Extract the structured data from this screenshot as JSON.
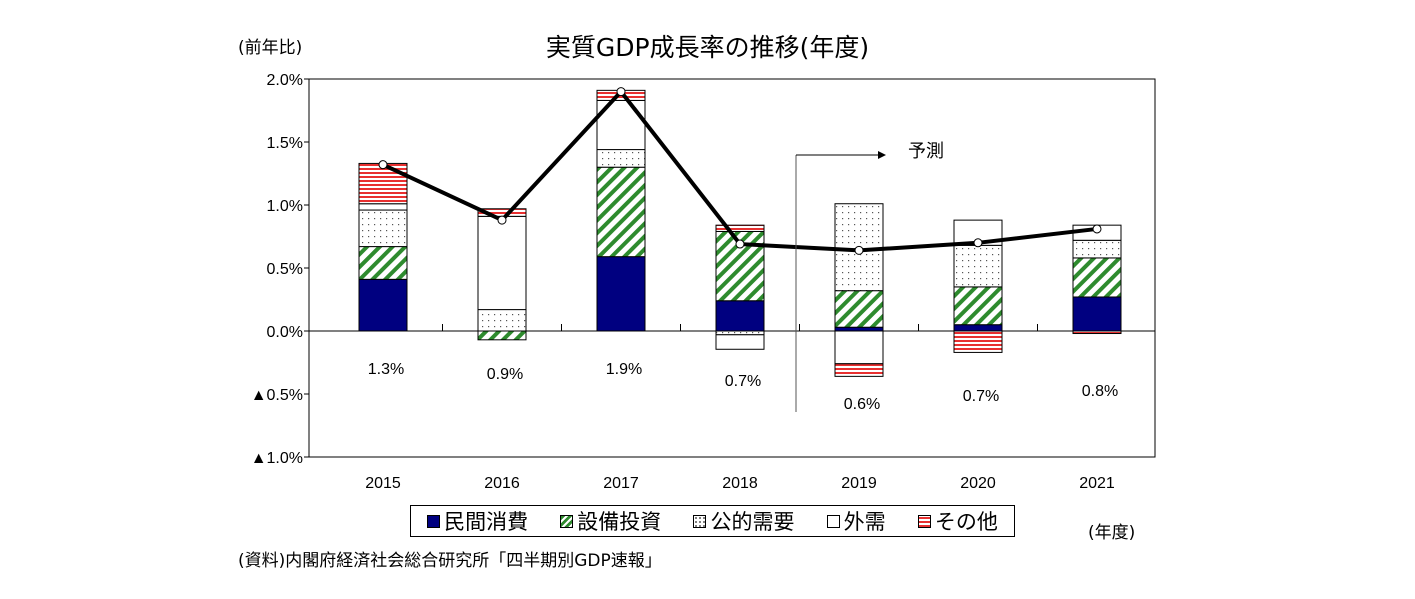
{
  "chart_data": {
    "type": "bar",
    "title": "実質GDP成長率の推移(年度)",
    "ylabel": "(前年比)",
    "xlabel": "(年度)",
    "source": "(資料)内閣府経済社会総合研究所「四半期別GDP速報」",
    "categories": [
      "2015",
      "2016",
      "2017",
      "2018",
      "2019",
      "2020",
      "2021"
    ],
    "ylim": [
      -1.0,
      2.0
    ],
    "yticks": [
      {
        "value": 2.0,
        "label": "2.0%"
      },
      {
        "value": 1.5,
        "label": "1.5%"
      },
      {
        "value": 1.0,
        "label": "1.0%"
      },
      {
        "value": 0.5,
        "label": "0.5%"
      },
      {
        "value": 0.0,
        "label": "0.0%"
      },
      {
        "value": -0.5,
        "label": "▲0.5%"
      },
      {
        "value": -1.0,
        "label": "▲1.0%"
      }
    ],
    "grid": false,
    "legend_position": "bottom",
    "stacked": true,
    "series": [
      {
        "name": "民間消費",
        "color": "#000080",
        "pattern": "solid",
        "values": [
          0.41,
          0.0,
          0.59,
          0.24,
          0.03,
          0.05,
          0.27
        ]
      },
      {
        "name": "設備投資",
        "color": "#2e8b2e",
        "pattern": "diagonal",
        "values": [
          0.26,
          -0.07,
          0.71,
          0.55,
          0.29,
          0.3,
          0.31
        ]
      },
      {
        "name": "公的需要",
        "color": "#888888",
        "pattern": "dots",
        "values": [
          0.29,
          0.17,
          0.14,
          -0.03,
          0.69,
          0.33,
          0.14
        ]
      },
      {
        "name": "外需",
        "color": "#ffffff",
        "pattern": "blank",
        "values": [
          0.05,
          0.74,
          0.39,
          -0.115,
          -0.26,
          0.2,
          0.12
        ]
      },
      {
        "name": "その他",
        "color": "#e83030",
        "pattern": "horizontal",
        "values": [
          0.32,
          0.06,
          0.08,
          0.05,
          -0.1,
          -0.17,
          -0.02
        ]
      }
    ],
    "line": {
      "values": [
        1.32,
        0.88,
        1.9,
        0.69,
        0.64,
        0.7,
        0.81
      ]
    },
    "data_labels": [
      "1.3%",
      "0.9%",
      "1.9%",
      "0.7%",
      "0.6%",
      "0.7%",
      "0.8%"
    ],
    "annotation": {
      "text": "予測",
      "from_category": "2019"
    }
  }
}
